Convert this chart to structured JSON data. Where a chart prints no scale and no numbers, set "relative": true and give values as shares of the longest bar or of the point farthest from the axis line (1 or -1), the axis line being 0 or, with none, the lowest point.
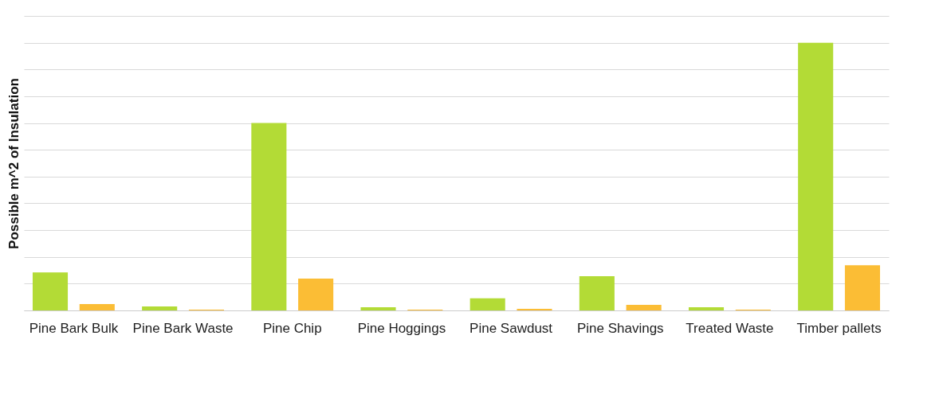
{
  "chart_data": {
    "type": "bar",
    "relative": true,
    "ylabel": "Possible m^2 of Insulation",
    "grid": "y",
    "categories": [
      "Pine Bark Bulk",
      "Pine Bark Waste",
      "Pine Chip",
      "Pine Hoggings",
      "Pine Sawdust",
      "Pine Shavings",
      "Treated Waste",
      "Timber pallets"
    ],
    "series": [
      {
        "color": "#b3db36",
        "values": [
          0.142,
          0.015,
          0.7,
          0.012,
          0.045,
          0.128,
          0.012,
          1.0
        ]
      },
      {
        "color": "#fbbd35",
        "values": [
          0.024,
          0.003,
          0.119,
          0.003,
          0.006,
          0.021,
          0.003,
          0.169
        ]
      }
    ]
  }
}
